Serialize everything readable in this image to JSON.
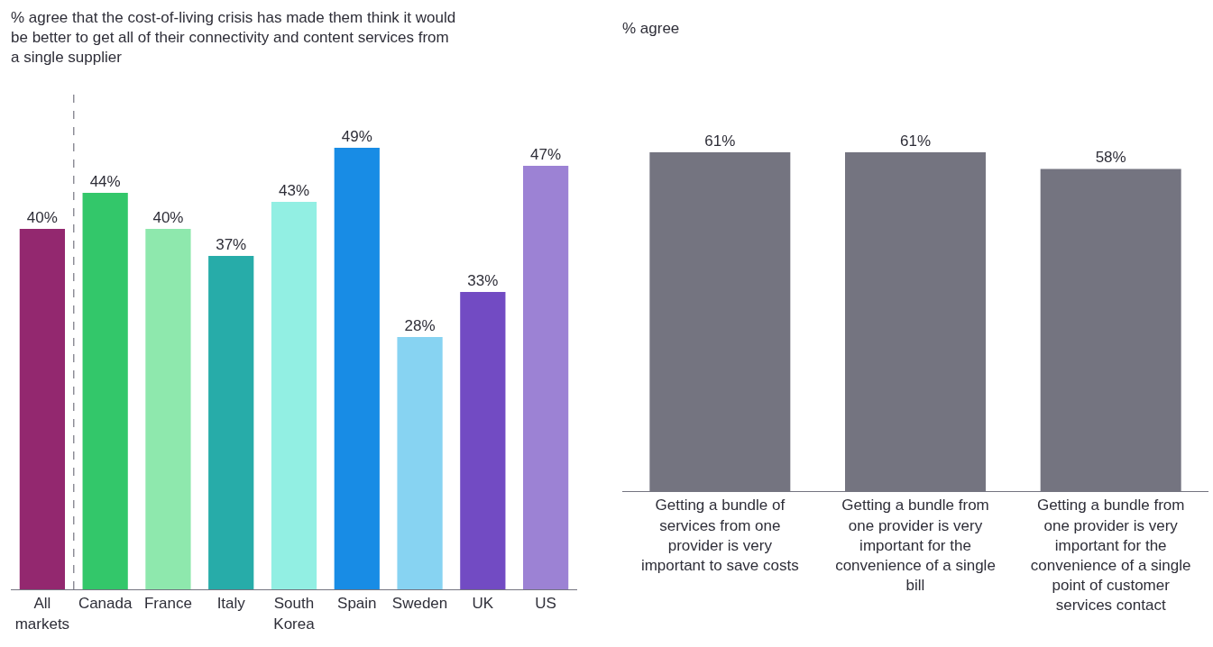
{
  "chart_data": [
    {
      "type": "bar",
      "title": "% agree that the cost-of-living crisis has made them think it would be better to get all of their connectivity and content services from a single supplier",
      "categories": [
        "All markets",
        "Canada",
        "France",
        "Italy",
        "South Korea",
        "Spain",
        "Sweden",
        "UK",
        "US"
      ],
      "values": [
        40,
        44,
        40,
        37,
        43,
        49,
        28,
        33,
        47
      ],
      "colors": [
        "#93286f",
        "#33c76a",
        "#8ee8ad",
        "#27aca9",
        "#92efe3",
        "#188ce5",
        "#87d3f2",
        "#724bc3",
        "#9c82d4"
      ],
      "value_labels": [
        "40%",
        "44%",
        "40%",
        "37%",
        "43%",
        "49%",
        "28%",
        "33%",
        "47%"
      ],
      "tick_labels": "x"
    },
    {
      "type": "bar",
      "title": "% agree",
      "categories": [
        "Getting a bundle of services from one provider is very important to save costs",
        "Getting a bundle from one provider is very important for the convenience of a single bill",
        "Getting a bundle from one provider is very important for the convenience of a single point of customer services contact"
      ],
      "values": [
        61,
        61,
        58
      ],
      "colors": [
        "#747480",
        "#747480",
        "#747480"
      ],
      "value_labels": [
        "61%",
        "61%",
        "58%"
      ],
      "tick_labels": "x"
    }
  ]
}
